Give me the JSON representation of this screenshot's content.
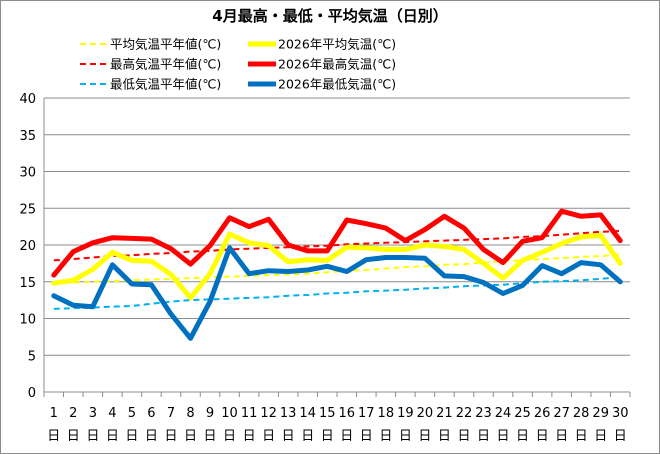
{
  "chart_data": {
    "type": "line",
    "title": "4月最高・最低・平均気温（日別）",
    "categories": [
      "1",
      "2",
      "3",
      "4",
      "5",
      "6",
      "7",
      "8",
      "9",
      "10",
      "11",
      "12",
      "13",
      "14",
      "15",
      "16",
      "17",
      "18",
      "19",
      "20",
      "21",
      "22",
      "23",
      "24",
      "25",
      "26",
      "27",
      "28",
      "29",
      "30"
    ],
    "category_suffix": "日",
    "ylim": [
      0,
      40
    ],
    "yticks": [
      "0",
      "5",
      "10",
      "15",
      "20",
      "25",
      "30",
      "35",
      "40"
    ],
    "grid": true,
    "legend_position": "top",
    "series": [
      {
        "name": "平均気温平年値(℃)",
        "color": "#ffff00",
        "style": "dashed",
        "width": 2,
        "values": [
          14.8,
          14.9,
          15.0,
          15.1,
          15.2,
          15.3,
          15.4,
          15.5,
          15.6,
          15.7,
          15.8,
          15.9,
          16.0,
          16.1,
          16.3,
          16.5,
          16.6,
          16.8,
          17.0,
          17.1,
          17.3,
          17.4,
          17.6,
          17.8,
          17.9,
          18.1,
          18.2,
          18.4,
          18.5,
          18.7
        ]
      },
      {
        "name": "2026年平均気温(℃)",
        "color": "#ffff00",
        "style": "solid",
        "width": 5,
        "values": [
          14.8,
          15.2,
          16.7,
          19.0,
          17.9,
          17.8,
          16.0,
          12.8,
          16.1,
          21.5,
          20.3,
          19.9,
          17.7,
          18.0,
          17.9,
          19.7,
          19.6,
          19.4,
          19.4,
          20.0,
          19.8,
          19.4,
          17.5,
          15.5,
          17.9,
          19.0,
          20.2,
          21.1,
          21.3,
          17.5
        ]
      },
      {
        "name": "最高気温平年値(℃)",
        "color": "#ff0000",
        "style": "dashed",
        "width": 2,
        "values": [
          17.9,
          18.1,
          18.3,
          18.5,
          18.6,
          18.8,
          18.9,
          19.1,
          19.2,
          19.4,
          19.5,
          19.6,
          19.7,
          19.8,
          19.9,
          20.1,
          20.2,
          20.3,
          20.4,
          20.5,
          20.6,
          20.7,
          20.8,
          20.9,
          21.1,
          21.2,
          21.4,
          21.6,
          21.8,
          21.9
        ]
      },
      {
        "name": "2026年最高気温(℃)",
        "color": "#ff0000",
        "style": "solid",
        "width": 5,
        "values": [
          15.9,
          19.1,
          20.3,
          21.0,
          20.9,
          20.8,
          19.5,
          17.4,
          19.9,
          23.7,
          22.5,
          23.5,
          20.0,
          19.2,
          19.2,
          23.4,
          22.9,
          22.3,
          20.6,
          22.1,
          23.9,
          22.3,
          19.4,
          17.6,
          20.5,
          21.0,
          24.6,
          23.9,
          24.1,
          20.6
        ]
      },
      {
        "name": "最低気温平年値(℃)",
        "color": "#00b0f0",
        "style": "dashed",
        "width": 2,
        "values": [
          11.3,
          11.4,
          11.5,
          11.6,
          11.7,
          12.0,
          12.3,
          12.5,
          12.6,
          12.7,
          12.8,
          12.9,
          13.1,
          13.2,
          13.4,
          13.5,
          13.7,
          13.8,
          13.9,
          14.1,
          14.2,
          14.4,
          14.5,
          14.6,
          14.8,
          15.0,
          15.1,
          15.2,
          15.4,
          15.6
        ]
      },
      {
        "name": "2026年最低気温(℃)",
        "color": "#0070c0",
        "style": "solid",
        "width": 5,
        "values": [
          13.1,
          11.8,
          11.6,
          17.3,
          14.7,
          14.6,
          10.6,
          7.3,
          12.3,
          19.6,
          16.1,
          16.5,
          16.4,
          16.6,
          17.1,
          16.4,
          18.0,
          18.3,
          18.3,
          18.2,
          15.8,
          15.7,
          14.9,
          13.4,
          14.5,
          17.2,
          16.1,
          17.6,
          17.3,
          15.0
        ]
      }
    ]
  }
}
